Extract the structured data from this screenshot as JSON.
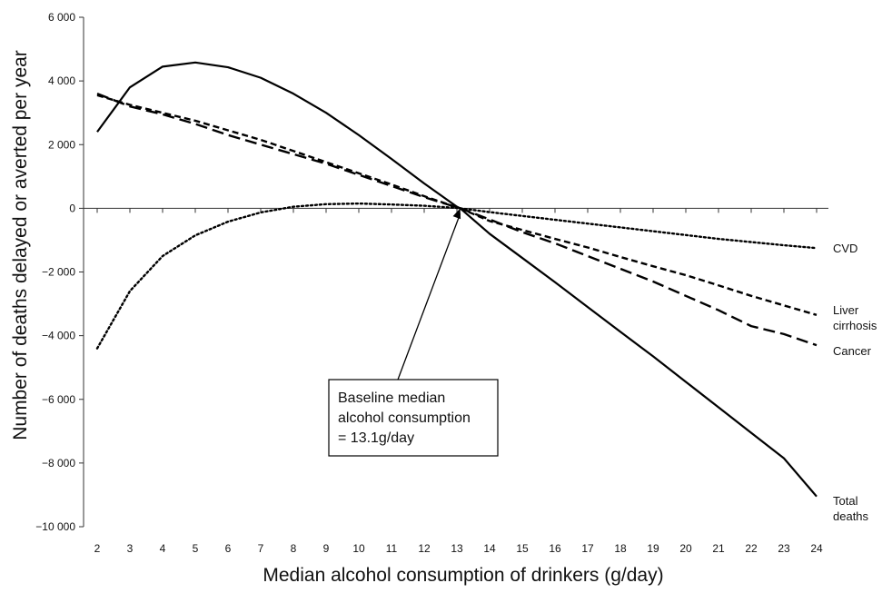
{
  "chart_data": {
    "type": "line",
    "xlabel": "Median alcohol consumption of drinkers (g/day)",
    "ylabel": "Number of deaths delayed or averted per year",
    "xlim": [
      2,
      24
    ],
    "ylim": [
      -10000,
      6000
    ],
    "x_ticks": [
      2,
      3,
      4,
      5,
      6,
      7,
      8,
      9,
      10,
      11,
      12,
      13,
      14,
      15,
      16,
      17,
      18,
      19,
      20,
      21,
      22,
      23,
      24
    ],
    "y_ticks": [
      {
        "value": 6000,
        "label": "6 000"
      },
      {
        "value": 4000,
        "label": "4 000"
      },
      {
        "value": 2000,
        "label": "2 000"
      },
      {
        "value": 0,
        "label": "0"
      },
      {
        "value": -2000,
        "label": "−2 000"
      },
      {
        "value": -4000,
        "label": "−4 000"
      },
      {
        "value": -6000,
        "label": "−6 000"
      },
      {
        "value": -8000,
        "label": "−8 000"
      },
      {
        "value": -10000,
        "label": "−10 000"
      }
    ],
    "grid": false,
    "legend": "none",
    "series": [
      {
        "name": "Total deaths",
        "label_lines": [
          "Total",
          "deaths"
        ],
        "style": "solid",
        "x": [
          2,
          3,
          4,
          5,
          6,
          7,
          8,
          9,
          10,
          11,
          12,
          13,
          13.1,
          14,
          15,
          16,
          17,
          18,
          19,
          20,
          21,
          22,
          23,
          24
        ],
        "values": [
          2400,
          3800,
          4450,
          4580,
          4430,
          4100,
          3600,
          3000,
          2300,
          1550,
          780,
          50,
          0,
          -800,
          -1560,
          -2320,
          -3100,
          -3880,
          -4650,
          -5450,
          -6250,
          -7050,
          -7850,
          -9050
        ]
      },
      {
        "name": "CVD",
        "label_lines": [
          "CVD"
        ],
        "style": "dotted",
        "x": [
          2,
          3,
          4,
          5,
          6,
          7,
          8,
          9,
          10,
          11,
          12,
          13,
          13.1,
          14,
          15,
          16,
          17,
          18,
          19,
          20,
          21,
          22,
          23,
          24
        ],
        "values": [
          -4400,
          -2600,
          -1500,
          -850,
          -420,
          -130,
          50,
          130,
          150,
          120,
          80,
          10,
          0,
          -120,
          -240,
          -360,
          -480,
          -600,
          -720,
          -840,
          -960,
          -1060,
          -1160,
          -1250
        ]
      },
      {
        "name": "Liver cirrhosis",
        "label_lines": [
          "Liver",
          "cirrhosis"
        ],
        "style": "dashed",
        "x": [
          2,
          3,
          4,
          5,
          6,
          7,
          8,
          9,
          10,
          11,
          12,
          13,
          13.1,
          14,
          15,
          16,
          17,
          18,
          19,
          20,
          21,
          22,
          23,
          24
        ],
        "values": [
          3550,
          3250,
          3000,
          2750,
          2450,
          2150,
          1800,
          1450,
          1100,
          750,
          380,
          30,
          0,
          -400,
          -680,
          -960,
          -1230,
          -1530,
          -1820,
          -2100,
          -2420,
          -2750,
          -3050,
          -3350
        ]
      },
      {
        "name": "Cancer",
        "label_lines": [
          "Cancer"
        ],
        "style": "long-dashed",
        "x": [
          2,
          3,
          4,
          5,
          6,
          7,
          8,
          9,
          10,
          11,
          12,
          13,
          13.1,
          14,
          15,
          16,
          17,
          18,
          19,
          20,
          21,
          22,
          23,
          24
        ],
        "values": [
          3600,
          3200,
          2950,
          2650,
          2300,
          2000,
          1700,
          1400,
          1050,
          700,
          350,
          30,
          0,
          -350,
          -750,
          -1100,
          -1500,
          -1900,
          -2300,
          -2750,
          -3200,
          -3700,
          -3950,
          -4300
        ]
      }
    ],
    "annotation": {
      "lines": [
        "Baseline median",
        "alcohol consumption",
        "= 13.1g/day"
      ],
      "points_to": {
        "x": 13.1,
        "y": 0
      }
    }
  }
}
